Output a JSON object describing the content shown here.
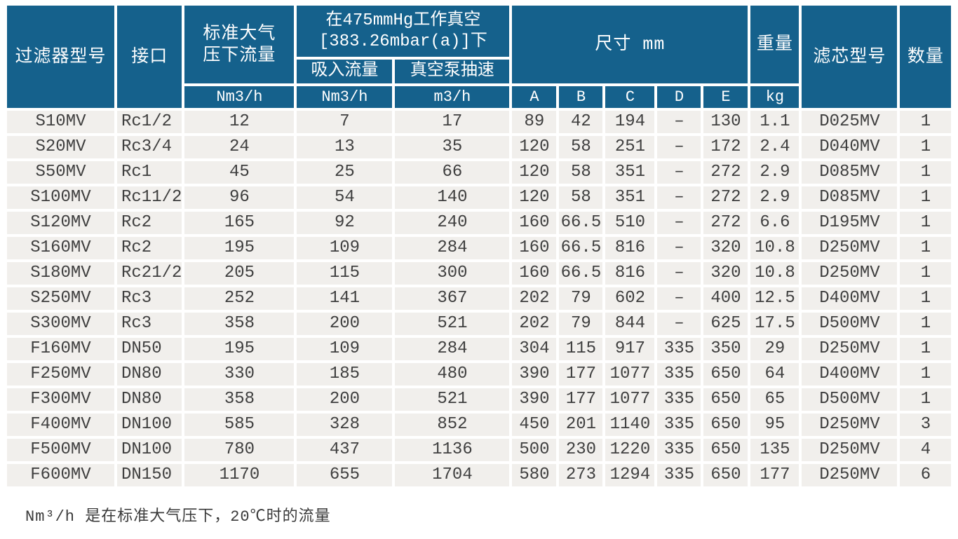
{
  "colors": {
    "header_bg": "#15618c",
    "header_text": "#ffffff",
    "cell_bg": "#f1efec",
    "cell_text": "#3f3f3f",
    "gap": "#ffffff"
  },
  "table": {
    "header": {
      "filter_model": "过滤器型号",
      "connection": "接口",
      "std_flow_line1": "标准大气",
      "std_flow_line2": "压下流量",
      "vacuum_group_line1": "在475mmHg工作真空",
      "vacuum_group_line2": "[383.26mbar(a)]下",
      "suction_flow": "吸入流量",
      "pump_speed": "真空泵抽速",
      "dimensions": "尺寸 mm",
      "weight": "重量",
      "element_model": "滤芯型号",
      "quantity": "数量",
      "unit_std_flow": "Nm3/h",
      "unit_suction_flow": "Nm3/h",
      "unit_pump_speed": "m3/h",
      "dim_a": "A",
      "dim_b": "B",
      "dim_c": "C",
      "dim_d": "D",
      "dim_e": "E",
      "unit_weight": "kg"
    },
    "rows": [
      [
        "S10MV",
        "Rc1/2",
        "12",
        "7",
        "17",
        "89",
        "42",
        "194",
        "–",
        "130",
        "1.1",
        "D025MV",
        "1"
      ],
      [
        "S20MV",
        "Rc3/4",
        "24",
        "13",
        "35",
        "120",
        "58",
        "251",
        "–",
        "172",
        "2.4",
        "D040MV",
        "1"
      ],
      [
        "S50MV",
        "Rc1",
        "45",
        "25",
        "66",
        "120",
        "58",
        "351",
        "–",
        "272",
        "2.9",
        "D085MV",
        "1"
      ],
      [
        "S100MV",
        "Rc11/2",
        "96",
        "54",
        "140",
        "120",
        "58",
        "351",
        "–",
        "272",
        "2.9",
        "D085MV",
        "1"
      ],
      [
        "S120MV",
        "Rc2",
        "165",
        "92",
        "240",
        "160",
        "66.5",
        "510",
        "–",
        "272",
        "6.6",
        "D195MV",
        "1"
      ],
      [
        "S160MV",
        "Rc2",
        "195",
        "109",
        "284",
        "160",
        "66.5",
        "816",
        "–",
        "320",
        "10.8",
        "D250MV",
        "1"
      ],
      [
        "S180MV",
        "Rc21/2",
        "205",
        "115",
        "300",
        "160",
        "66.5",
        "816",
        "–",
        "320",
        "10.8",
        "D250MV",
        "1"
      ],
      [
        "S250MV",
        "Rc3",
        "252",
        "141",
        "367",
        "202",
        "79",
        "602",
        "–",
        "400",
        "12.5",
        "D400MV",
        "1"
      ],
      [
        "S300MV",
        "Rc3",
        "358",
        "200",
        "521",
        "202",
        "79",
        "844",
        "–",
        "625",
        "17.5",
        "D500MV",
        "1"
      ],
      [
        "F160MV",
        "DN50",
        "195",
        "109",
        "284",
        "304",
        "115",
        "917",
        "335",
        "350",
        "29",
        "D250MV",
        "1"
      ],
      [
        "F250MV",
        "DN80",
        "330",
        "185",
        "480",
        "390",
        "177",
        "1077",
        "335",
        "650",
        "64",
        "D400MV",
        "1"
      ],
      [
        "F300MV",
        "DN80",
        "358",
        "200",
        "521",
        "390",
        "177",
        "1077",
        "335",
        "650",
        "65",
        "D500MV",
        "1"
      ],
      [
        "F400MV",
        "DN100",
        "585",
        "328",
        "852",
        "450",
        "201",
        "1140",
        "335",
        "650",
        "95",
        "D250MV",
        "3"
      ],
      [
        "F500MV",
        "DN100",
        "780",
        "437",
        "1136",
        "500",
        "230",
        "1220",
        "335",
        "650",
        "135",
        "D250MV",
        "4"
      ],
      [
        "F600MV",
        "DN150",
        "1170",
        "655",
        "1704",
        "580",
        "273",
        "1294",
        "335",
        "650",
        "177",
        "D250MV",
        "6"
      ]
    ]
  },
  "footnote": "Nm³/h 是在标准大气压下，20℃时的流量"
}
